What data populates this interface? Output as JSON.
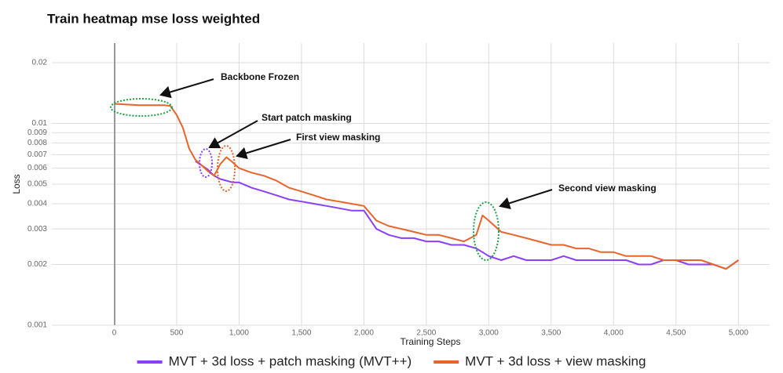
{
  "chart_data": {
    "type": "line",
    "title": "Train heatmap mse loss weighted",
    "xlabel": "Training Steps",
    "ylabel": "Loss",
    "yscale": "log",
    "grid": true,
    "legend": "bottom",
    "xlim": [
      -500,
      5250
    ],
    "ylim": [
      0.001,
      0.025
    ],
    "xticks": [
      0,
      500,
      {
        "value": 1000,
        "label": "1,000"
      },
      {
        "value": 1500,
        "label": "1,500"
      },
      {
        "value": 2000,
        "label": "2,000"
      },
      {
        "value": 2500,
        "label": "2,500"
      },
      {
        "value": 3000,
        "label": "3,000"
      },
      {
        "value": 3500,
        "label": "3,500"
      },
      {
        "value": 4000,
        "label": "4,000"
      },
      {
        "value": 4500,
        "label": "4,500"
      },
      {
        "value": 5000,
        "label": "5,000"
      }
    ],
    "yticks": [
      0.001,
      0.002,
      0.003,
      0.004,
      0.005,
      0.006,
      0.007,
      0.008,
      0.009,
      0.01,
      0.02
    ],
    "x": [
      0,
      100,
      200,
      300,
      400,
      450,
      500,
      550,
      600,
      650,
      700,
      750,
      800,
      850,
      900,
      950,
      1000,
      1100,
      1200,
      1300,
      1400,
      1500,
      1600,
      1700,
      1800,
      1900,
      2000,
      2100,
      2200,
      2300,
      2400,
      2500,
      2600,
      2700,
      2800,
      2900,
      2950,
      3000,
      3100,
      3200,
      3300,
      3400,
      3500,
      3600,
      3700,
      3800,
      3900,
      4000,
      4100,
      4200,
      4300,
      4400,
      4500,
      4600,
      4700,
      4800,
      4900,
      5000
    ],
    "series": [
      {
        "name": "MVT + 3d loss + patch masking (MVT++)",
        "color": "#8a3ffc",
        "values": [
          null,
          null,
          null,
          null,
          null,
          null,
          null,
          null,
          null,
          0.0065,
          0.0062,
          0.0059,
          0.0055,
          0.0053,
          0.0052,
          0.0051,
          0.0051,
          0.0048,
          0.0046,
          0.0044,
          0.0042,
          0.0041,
          0.004,
          0.0039,
          0.0038,
          0.0037,
          0.0037,
          0.003,
          0.0028,
          0.0027,
          0.0027,
          0.0026,
          0.0026,
          0.0025,
          0.0025,
          0.0024,
          0.0023,
          0.0022,
          0.0021,
          0.0022,
          0.0021,
          0.0021,
          0.0021,
          0.0022,
          0.0021,
          0.0021,
          0.0021,
          0.0021,
          0.0021,
          0.002,
          0.002,
          0.0021,
          0.0021,
          0.002,
          0.002,
          0.002,
          0.0019,
          0.0021
        ]
      },
      {
        "name": "MVT + 3d loss + view masking",
        "color": "#e8642a",
        "values": [
          0.0125,
          0.0124,
          0.0123,
          0.0123,
          0.0123,
          0.0122,
          0.011,
          0.0095,
          0.0075,
          0.0066,
          0.0062,
          0.0058,
          0.0055,
          0.0063,
          0.0068,
          0.0064,
          0.006,
          0.0057,
          0.0055,
          0.0052,
          0.0048,
          0.0046,
          0.0044,
          0.0042,
          0.0041,
          0.004,
          0.0039,
          0.0033,
          0.0031,
          0.003,
          0.0029,
          0.0028,
          0.0028,
          0.0027,
          0.0026,
          0.0028,
          0.0035,
          0.0033,
          0.0029,
          0.0028,
          0.0027,
          0.0026,
          0.0025,
          0.0025,
          0.0024,
          0.0024,
          0.0023,
          0.0023,
          0.0022,
          0.0022,
          0.0022,
          0.0021,
          0.0021,
          0.0021,
          0.0021,
          0.002,
          0.0019,
          0.0021
        ]
      }
    ],
    "annotations": [
      "Backbone Frozen",
      "Start patch masking",
      "First view masking",
      "Second view masking"
    ]
  }
}
